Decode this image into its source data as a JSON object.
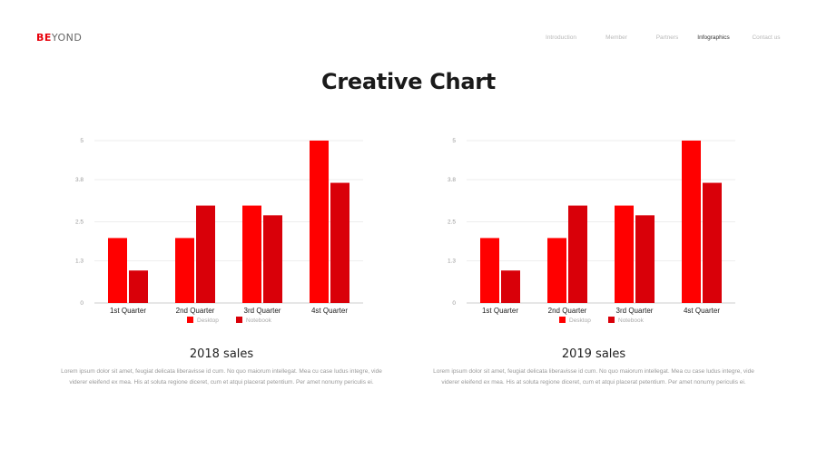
{
  "brand": {
    "logo_bold": "BE",
    "logo_rest": "YOND"
  },
  "nav": {
    "items": [
      {
        "label": "Introduction",
        "active": false
      },
      {
        "label": "Member",
        "active": false
      },
      {
        "label": "Partners",
        "active": false
      },
      {
        "label": "Infographics",
        "active": true
      },
      {
        "label": "Contact us",
        "active": false
      }
    ]
  },
  "page_title": "Creative Chart",
  "colors": {
    "desktop": "#ff0000",
    "notebook": "#d90009",
    "grid": "#eeeeee",
    "axis": "#cccccc"
  },
  "panels": [
    {
      "title": "2018 sales",
      "text": "Lorem ipsum dolor sit amet, feugiat delicata liberavisse id cum. No quo maiorum intellegat. Mea cu case ludus integre, vide viderer eleifend ex mea. His at soluta regione diceret, cum et atqui placerat petentium. Per amet nonumy periculis ei."
    },
    {
      "title": "2019 sales",
      "text": "Lorem ipsum dolor sit amet, feugiat delicata liberavisse id cum. No quo maiorum intellegat. Mea cu case ludus integre, vide viderer eleifend ex mea. His at soluta regione diceret, cum et atqui placerat petentium. Per amet nonumy periculis ei."
    }
  ],
  "chart_data": [
    {
      "type": "bar",
      "title": "",
      "categories": [
        "1st Quarter",
        "2nd Quarter",
        "3rd Quarter",
        "4st Quarter"
      ],
      "series": [
        {
          "name": "Desktop",
          "values": [
            2.0,
            2.0,
            3.0,
            5.0
          ]
        },
        {
          "name": "Notebook",
          "values": [
            1.0,
            3.0,
            2.7,
            3.7
          ]
        }
      ],
      "yticks": [
        "0",
        "1.3",
        "2.5",
        "3.8",
        "5"
      ],
      "ylim": [
        0,
        5
      ],
      "grid": true,
      "legend": "bottom"
    },
    {
      "type": "bar",
      "title": "",
      "categories": [
        "1st Quarter",
        "2nd Quarter",
        "3rd Quarter",
        "4st Quarter"
      ],
      "series": [
        {
          "name": "Desktop",
          "values": [
            2.0,
            2.0,
            3.0,
            5.0
          ]
        },
        {
          "name": "Notebook",
          "values": [
            1.0,
            3.0,
            2.7,
            3.7
          ]
        }
      ],
      "yticks": [
        "0",
        "1.3",
        "2.5",
        "3.8",
        "5"
      ],
      "ylim": [
        0,
        5
      ],
      "grid": true,
      "legend": "bottom"
    }
  ]
}
